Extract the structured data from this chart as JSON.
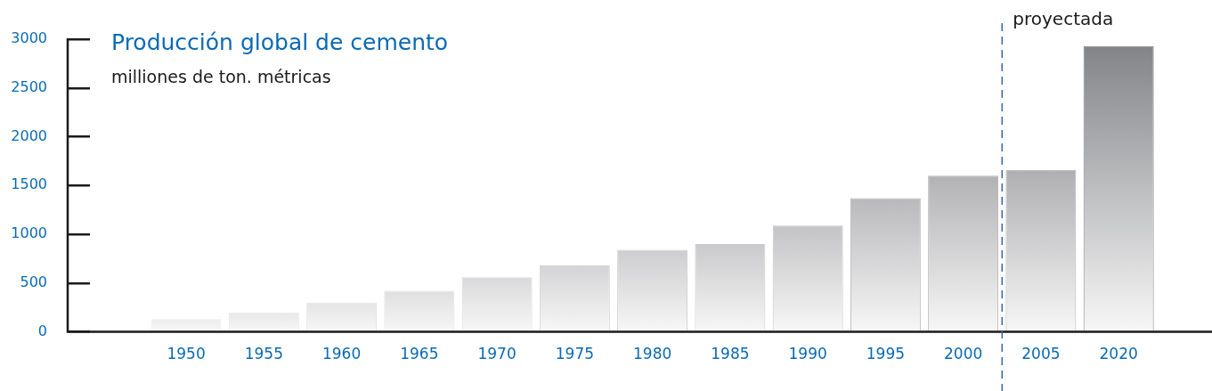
{
  "chart_data": {
    "type": "bar",
    "title": "Producción global de cemento",
    "subtitle": "milliones de ton. métricas",
    "categories": [
      "1950",
      "1955",
      "1960",
      "1965",
      "1970",
      "1975",
      "1980",
      "1985",
      "1990",
      "1995",
      "2000",
      "2005",
      "2020"
    ],
    "values": [
      130,
      200,
      300,
      420,
      560,
      680,
      840,
      900,
      1090,
      1370,
      1600,
      1660,
      2930
    ],
    "colors": [
      "#ececec",
      "#e8e8e9",
      "#e4e4e5",
      "#dfdfe0",
      "#d9d9db",
      "#d4d4d6",
      "#cdcdcf",
      "#cacacc",
      "#c3c3c5",
      "#b9b9bc",
      "#b2b2b5",
      "#afafb2",
      "#838488"
    ],
    "ylim": [
      0,
      3000
    ],
    "yticks": [
      0,
      500,
      1000,
      1500,
      2000,
      2500,
      3000
    ],
    "grid": false,
    "legend": false,
    "ref_lines": [
      {
        "axis": "x",
        "value": "2005",
        "label": "proyectada",
        "color": "#3c64a8",
        "line_style": "dashed"
      }
    ]
  }
}
